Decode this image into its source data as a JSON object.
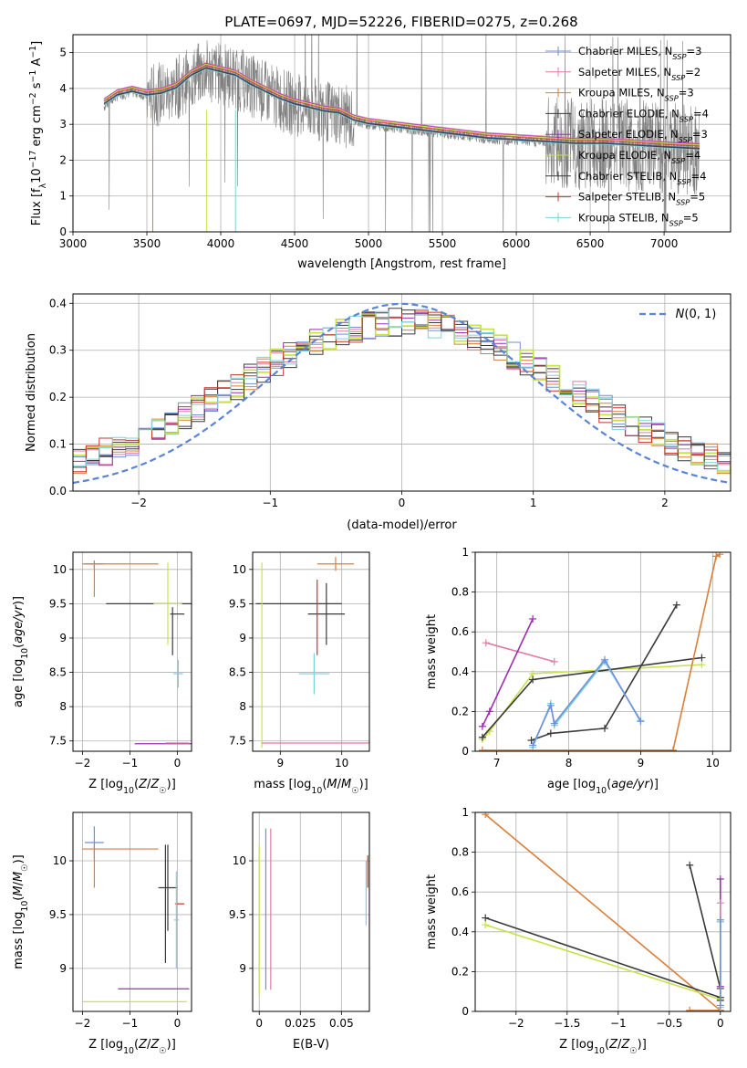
{
  "title": "PLATE=0697, MJD=52226, FIBERID=0275, z=0.268",
  "colors": {
    "Chabrier MILES": "#6f8fd8",
    "Salpeter MILES": "#e07aa8",
    "Kroupa MILES": "#d97f3a",
    "Chabrier ELODIE": "#3a3a3a",
    "Salpeter ELODIE": "#9b2fae",
    "Kroupa ELODIE": "#c8e34a",
    "Chabrier STELIB": "#3a3a3a",
    "Salpeter STELIB": "#c0392b",
    "Kroupa STELIB": "#7fd0da"
  },
  "chart_data": [
    {
      "type": "line",
      "panel": "spectrum",
      "title": "PLATE=0697, MJD=52226, FIBERID=0275, z=0.268",
      "xlabel": "wavelength [Angstrom, rest frame]",
      "ylabel": "Flux [f_λ 10^-17 erg cm^-2 s^-1 A^-1]",
      "xlim": [
        3000,
        7450
      ],
      "ylim": [
        0,
        5.5
      ],
      "xticks": [
        3000,
        3500,
        4000,
        4500,
        5000,
        5500,
        6000,
        6500,
        7000
      ],
      "yticks": [
        0,
        1,
        2,
        3,
        4,
        5
      ],
      "grid": true,
      "legend_position": "top-right",
      "data_series": {
        "name": "data",
        "x": [
          3210,
          3300,
          3400,
          3500,
          3600,
          3700,
          3800,
          3900,
          4000,
          4100,
          4200,
          4300,
          4400,
          4500,
          4600,
          4700,
          4800,
          4900,
          5000,
          5200,
          5400,
          5600,
          5800,
          6000,
          6200,
          6400,
          6600,
          6800,
          7000,
          7240
        ],
        "y": [
          3.5,
          3.8,
          3.9,
          3.8,
          3.85,
          4.0,
          4.3,
          4.5,
          4.4,
          4.3,
          4.1,
          3.9,
          3.7,
          3.55,
          3.45,
          3.35,
          3.3,
          3.1,
          3.0,
          2.9,
          2.8,
          2.7,
          2.6,
          2.55,
          2.5,
          2.45,
          2.45,
          2.4,
          2.35,
          2.3
        ]
      },
      "series": [
        {
          "name": "Chabrier MILES, N_SSP=3"
        },
        {
          "name": "Salpeter MILES, N_SSP=2"
        },
        {
          "name": "Kroupa MILES, N_SSP=3"
        },
        {
          "name": "Chabrier ELODIE, N_SSP=4"
        },
        {
          "name": "Salpeter ELODIE, N_SSP=3"
        },
        {
          "name": "Kroupa ELODIE, N_SSP=4"
        },
        {
          "name": "Chabrier STELIB, N_SSP=4"
        },
        {
          "name": "Salpeter STELIB, N_SSP=5"
        },
        {
          "name": "Kroupa STELIB, N_SSP=5"
        }
      ],
      "model_x": [
        3210,
        3300,
        3400,
        3500,
        3600,
        3700,
        3800,
        3900,
        4000,
        4100,
        4200,
        4300,
        4400,
        4500,
        4600,
        4700,
        4800,
        4900,
        5000,
        5200,
        5400,
        5600,
        5800,
        6000,
        6200,
        6400,
        6600,
        6800,
        7000,
        7240
      ],
      "model_y": [
        3.6,
        3.85,
        3.95,
        3.85,
        3.9,
        4.05,
        4.4,
        4.6,
        4.5,
        4.4,
        4.15,
        3.95,
        3.75,
        3.6,
        3.5,
        3.4,
        3.35,
        3.15,
        3.05,
        2.95,
        2.85,
        2.75,
        2.65,
        2.6,
        2.55,
        2.5,
        2.5,
        2.45,
        2.4,
        2.35
      ]
    },
    {
      "type": "line",
      "panel": "residual-histogram",
      "xlabel": "(data-model)/error",
      "ylabel": "Normed distribution",
      "xlim": [
        -2.5,
        2.5
      ],
      "ylim": [
        0,
        0.42
      ],
      "xticks": [
        -2,
        -1,
        0,
        1,
        2
      ],
      "yticks": [
        0.0,
        0.1,
        0.2,
        0.3,
        0.4
      ],
      "grid": true,
      "legend": [
        "N(0,1)"
      ],
      "legend_position": "top-right",
      "gaussian": {
        "mean": 0,
        "sigma": 1
      }
    },
    {
      "type": "scatter",
      "panel": "age-vs-Z",
      "xlabel": "Z [log10(Z/Z☉)]",
      "ylabel": "age [log10(age/yr)]",
      "xlim": [
        -2.2,
        0.3
      ],
      "ylim": [
        7.35,
        10.25
      ],
      "xticks": [
        -2,
        -1,
        0
      ],
      "yticks": [
        7.5,
        8.0,
        8.5,
        9.0,
        9.5,
        10.0
      ],
      "grid": true,
      "points": [
        {
          "x": -1.75,
          "y": 10.08,
          "xerr": 0.2,
          "yerr": 0.05,
          "series": "Chabrier MILES"
        },
        {
          "x": -1.2,
          "y": 10.08,
          "xerr": 0.8,
          "yerr": 0.0,
          "series": "Kroupa MILES"
        },
        {
          "x": -1.75,
          "y": 9.85,
          "xerr": 0.0,
          "yerr": 0.25,
          "series": "Kroupa MILES"
        },
        {
          "x": -0.6,
          "y": 9.5,
          "xerr": 0.9,
          "yerr": 0.0,
          "series": "Chabrier STELIB"
        },
        {
          "x": -0.2,
          "y": 9.5,
          "xerr": 0.3,
          "yerr": 0.6,
          "series": "Kroupa ELODIE"
        },
        {
          "x": 0.0,
          "y": 9.35,
          "xerr": 0.15,
          "yerr": 0.0,
          "series": "Chabrier ELODIE"
        },
        {
          "x": -0.1,
          "y": 9.1,
          "xerr": 0.0,
          "yerr": 0.35,
          "series": "Chabrier ELODIE"
        },
        {
          "x": 0.02,
          "y": 8.48,
          "xerr": 0.1,
          "yerr": 0.2,
          "series": "Kroupa STELIB"
        },
        {
          "x": -0.3,
          "y": 7.46,
          "xerr": 0.6,
          "yerr": 0.0,
          "series": "Salpeter ELODIE"
        },
        {
          "x": 0.0,
          "y": 7.47,
          "xerr": 0.25,
          "yerr": 0.0,
          "series": "Salpeter MILES"
        }
      ]
    },
    {
      "type": "scatter",
      "panel": "age-vs-mass",
      "xlabel": "mass [log10(M/M☉)]",
      "ylabel": "",
      "xlim": [
        8.55,
        10.45
      ],
      "ylim": [
        7.35,
        10.25
      ],
      "xticks": [
        9,
        10
      ],
      "yticks": [
        7.5,
        8.0,
        8.5,
        9.0,
        9.5,
        10.0
      ],
      "grid": true,
      "points": [
        {
          "x": 9.9,
          "y": 10.08,
          "xerr": 0.3,
          "yerr": 0.1,
          "series": "Kroupa MILES"
        },
        {
          "x": 9.3,
          "y": 9.5,
          "xerr": 0.7,
          "yerr": 0.0,
          "series": "Chabrier STELIB"
        },
        {
          "x": 9.75,
          "y": 9.35,
          "xerr": 0.3,
          "yerr": 0.45,
          "series": "Chabrier ELODIE"
        },
        {
          "x": 9.6,
          "y": 9.3,
          "xerr": 0.0,
          "yerr": 0.55,
          "series": "Salpeter STELIB"
        },
        {
          "x": 9.55,
          "y": 8.48,
          "xerr": 0.25,
          "yerr": 0.3,
          "series": "Kroupa STELIB"
        },
        {
          "x": 8.7,
          "y": 8.75,
          "xerr": 0.0,
          "yerr": 1.35,
          "series": "Kroupa ELODIE"
        },
        {
          "x": 9.7,
          "y": 7.47,
          "xerr": 1.0,
          "yerr": 0.0,
          "series": "Salpeter MILES"
        }
      ]
    },
    {
      "type": "line",
      "panel": "mass-weight-vs-age",
      "xlabel": "age [log10(age/yr)]",
      "ylabel": "mass weight",
      "xlim": [
        6.7,
        10.25
      ],
      "ylim": [
        0,
        1
      ],
      "xticks": [
        7,
        8,
        9,
        10
      ],
      "yticks": [
        0.0,
        0.2,
        0.4,
        0.6,
        0.8,
        1.0
      ],
      "grid": true,
      "series": [
        {
          "series": "Salpeter MILES",
          "x": [
            6.85,
            7.8
          ],
          "y": [
            0.545,
            0.45
          ]
        },
        {
          "series": "Salpeter ELODIE",
          "x": [
            6.8,
            6.9,
            7.5
          ],
          "y": [
            0.125,
            0.2,
            0.665
          ]
        },
        {
          "series": "Kroupa ELODIE",
          "x": [
            6.8,
            6.9,
            7.5,
            9.85
          ],
          "y": [
            0.06,
            0.1,
            0.39,
            0.435
          ]
        },
        {
          "series": "Chabrier STELIB",
          "x": [
            6.8,
            7.5,
            9.85
          ],
          "y": [
            0.07,
            0.36,
            0.47
          ]
        },
        {
          "series": "Chabrier ELODIE",
          "x": [
            7.48,
            7.75,
            8.5,
            9.5
          ],
          "y": [
            0.055,
            0.09,
            0.115,
            0.735
          ]
        },
        {
          "series": "Kroupa STELIB",
          "x": [
            7.5,
            7.75,
            7.8,
            8.5,
            9.0
          ],
          "y": [
            0.02,
            0.24,
            0.13,
            0.45,
            0.155
          ]
        },
        {
          "series": "Chabrier MILES",
          "x": [
            7.5,
            7.75,
            7.8,
            8.5,
            9.0
          ],
          "y": [
            0.03,
            0.23,
            0.14,
            0.46,
            0.15
          ]
        },
        {
          "series": "Kroupa MILES",
          "x": [
            6.8,
            9.45,
            10.05,
            10.1
          ],
          "y": [
            0.005,
            0.005,
            0.98,
            0.99
          ]
        }
      ]
    },
    {
      "type": "scatter",
      "panel": "mass-vs-Z",
      "xlabel": "Z [log10(Z/Z☉)]",
      "ylabel": "mass [log10(M/M☉)]",
      "xlim": [
        -2.2,
        0.3
      ],
      "ylim": [
        8.6,
        10.45
      ],
      "xticks": [
        -2,
        -1,
        0
      ],
      "yticks": [
        9.0,
        9.5,
        10.0
      ],
      "grid": true,
      "points": [
        {
          "x": -1.75,
          "y": 10.17,
          "xerr": 0.2,
          "yerr": 0.15,
          "series": "Chabrier MILES"
        },
        {
          "x": -1.2,
          "y": 10.11,
          "xerr": 0.8,
          "yerr": 0.0,
          "series": "Kroupa MILES"
        },
        {
          "x": -1.75,
          "y": 9.95,
          "xerr": 0.0,
          "yerr": 0.2,
          "series": "Kroupa MILES"
        },
        {
          "x": -0.2,
          "y": 9.75,
          "xerr": 0.2,
          "yerr": 0.4,
          "series": "Chabrier ELODIE"
        },
        {
          "x": 0.05,
          "y": 9.6,
          "xerr": 0.1,
          "yerr": 0.0,
          "series": "Salpeter STELIB"
        },
        {
          "x": -0.02,
          "y": 9.45,
          "xerr": 0.05,
          "yerr": 0.45,
          "series": "Kroupa STELIB"
        },
        {
          "x": -0.5,
          "y": 8.81,
          "xerr": 0.75,
          "yerr": 0.0,
          "series": "Salpeter ELODIE"
        },
        {
          "x": -0.9,
          "y": 8.69,
          "xerr": 1.1,
          "yerr": 0.0,
          "series": "Kroupa ELODIE"
        },
        {
          "x": -0.25,
          "y": 9.6,
          "xerr": 0.0,
          "yerr": 0.55,
          "series": "Chabrier STELIB"
        }
      ]
    },
    {
      "type": "scatter",
      "panel": "mass-vs-EBV",
      "xlabel": "E(B-V)",
      "ylabel": "",
      "xlim": [
        -0.004,
        0.067
      ],
      "ylim": [
        8.6,
        10.45
      ],
      "xticks": [
        0.0,
        0.025,
        0.05
      ],
      "yticks": [
        9.0,
        9.5,
        10.0
      ],
      "grid": true,
      "points": [
        {
          "x": 0.0,
          "y": 9.45,
          "yerr": 0.7,
          "series": "Kroupa ELODIE"
        },
        {
          "x": 0.004,
          "y": 9.55,
          "yerr": 0.75,
          "series": "Chabrier MILES"
        },
        {
          "x": 0.007,
          "y": 9.55,
          "yerr": 0.75,
          "series": "Salpeter MILES"
        },
        {
          "x": 0.065,
          "y": 9.7,
          "yerr": 0.3,
          "series": "Kroupa STELIB"
        },
        {
          "x": 0.066,
          "y": 9.9,
          "yerr": 0.15,
          "series": "Salpeter STELIB"
        }
      ]
    },
    {
      "type": "line",
      "panel": "mass-weight-vs-Z",
      "xlabel": "Z [log10(Z/Z☉)]",
      "ylabel": "mass weight",
      "xlim": [
        -2.4,
        0.1
      ],
      "ylim": [
        0,
        1
      ],
      "xticks": [
        -2.0,
        -1.5,
        -1.0,
        -0.5,
        0.0
      ],
      "yticks": [
        0.0,
        0.2,
        0.4,
        0.6,
        0.8,
        1.0
      ],
      "grid": true,
      "series": [
        {
          "series": "Kroupa MILES",
          "x": [
            -2.3,
            0.0,
            -0.3,
            0.0
          ],
          "y": [
            0.99,
            0.005,
            0.005,
            0.005
          ]
        },
        {
          "series": "Chabrier STELIB",
          "x": [
            -2.3,
            0.0
          ],
          "y": [
            0.47,
            0.07
          ]
        },
        {
          "series": "Kroupa ELODIE",
          "x": [
            -2.3,
            0.0
          ],
          "y": [
            0.435,
            0.06
          ]
        },
        {
          "series": "Chabrier ELODIE",
          "x": [
            -0.3,
            0.0,
            0.0
          ],
          "y": [
            0.735,
            0.115,
            0.055
          ]
        },
        {
          "series": "Salpeter ELODIE",
          "x": [
            0.0,
            0.0
          ],
          "y": [
            0.665,
            0.125
          ]
        },
        {
          "series": "Salpeter MILES",
          "x": [
            0.0,
            0.0
          ],
          "y": [
            0.545,
            0.45
          ]
        },
        {
          "series": "Kroupa STELIB",
          "x": [
            0.0,
            0.0
          ],
          "y": [
            0.45,
            0.02
          ]
        },
        {
          "series": "Chabrier MILES",
          "x": [
            0.0,
            0.0
          ],
          "y": [
            0.46,
            0.03
          ]
        }
      ]
    }
  ]
}
